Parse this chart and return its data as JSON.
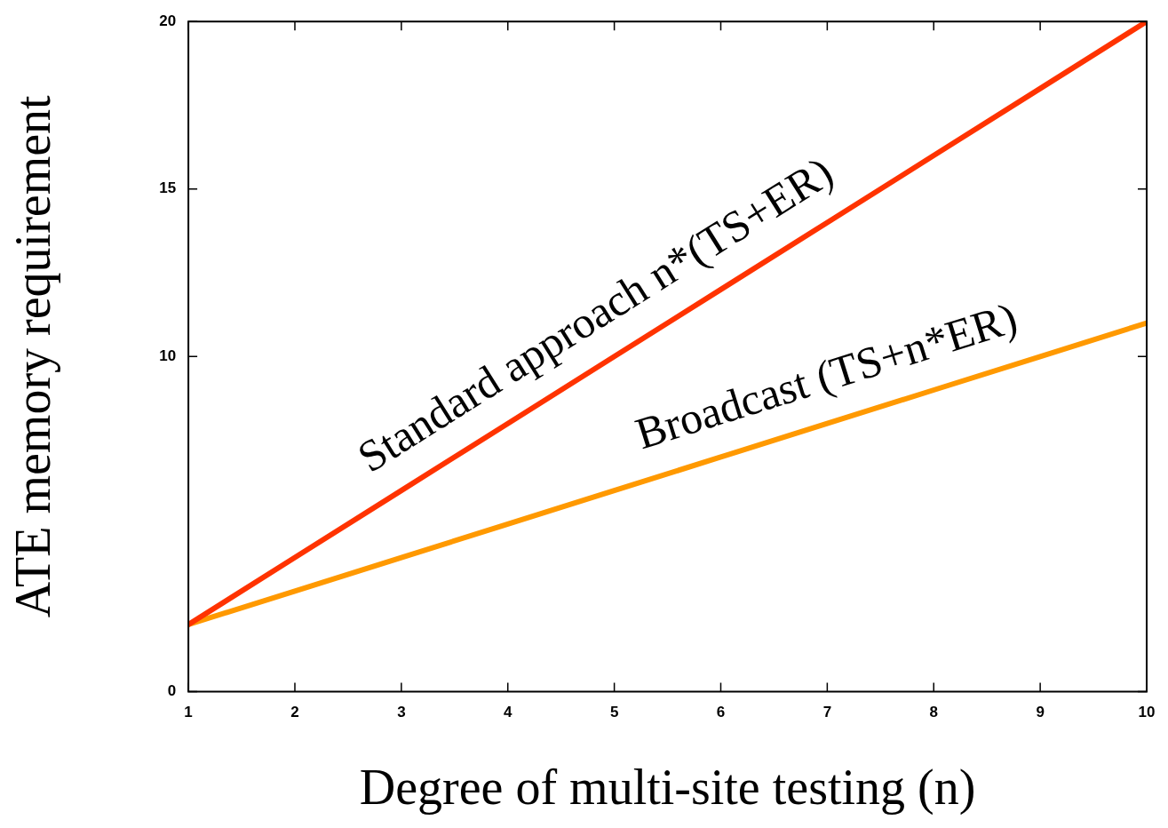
{
  "chart_data": {
    "type": "line",
    "xlabel": "Degree of multi-site testing (n)",
    "ylabel": "ATE memory requirement",
    "x": [
      1,
      2,
      3,
      4,
      5,
      6,
      7,
      8,
      9,
      10
    ],
    "series": [
      {
        "color": "#ff3300",
        "values": [
          2,
          4,
          6,
          8,
          10,
          12,
          14,
          16,
          18,
          20
        ]
      },
      {
        "color": "#ff9900",
        "values": [
          2,
          3,
          4,
          5,
          6,
          7,
          8,
          9,
          10,
          11
        ]
      }
    ],
    "xlim": [
      1,
      10
    ],
    "xticks": [
      1,
      2,
      3,
      4,
      5,
      6,
      7,
      8,
      9,
      10
    ],
    "ylim": [
      0,
      20
    ],
    "yticks": [
      0,
      10,
      15,
      20
    ],
    "grid": false,
    "legend": false,
    "marker": "none",
    "line_style": "solid",
    "annotations": [
      "Standard approach n*(TS+ER)",
      "Broadcast (TS+n*ER)"
    ]
  }
}
